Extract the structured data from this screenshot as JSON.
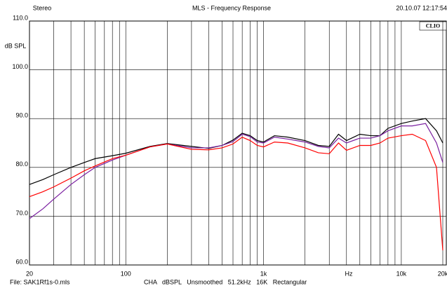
{
  "chart_data": {
    "type": "line",
    "header_left": "Stereo",
    "title": "MLS - Frequency Response",
    "header_right": "20.10.07 12:17:54",
    "logo": "CLIO",
    "ylabel": "dB SPL",
    "xlabel": "Hz",
    "footer_file": "File: SAK1Rf1s-0.mls",
    "footer_settings": "CHA   dBSPL   Unsmoothed   51.2kHz   16K   Rectangular",
    "xscale": "log",
    "xlim": [
      20,
      20000
    ],
    "ylim": [
      60,
      110
    ],
    "yticks": [
      {
        "value": 60,
        "label": "60.0"
      },
      {
        "value": 70,
        "label": "70.0"
      },
      {
        "value": 80,
        "label": "80.0"
      },
      {
        "value": 90,
        "label": "90.0"
      },
      {
        "value": 100,
        "label": "100.0"
      },
      {
        "value": 110,
        "label": "110.0"
      }
    ],
    "xticks": [
      20,
      100,
      {
        "value": 1000,
        "label": "1k"
      },
      {
        "value": 10000,
        "label": "10k"
      },
      {
        "value": 20000,
        "label": "20k"
      }
    ],
    "xminor": [
      30,
      40,
      50,
      60,
      70,
      80,
      90,
      200,
      300,
      400,
      500,
      600,
      700,
      800,
      900,
      2000,
      3000,
      4000,
      5000,
      6000,
      7000,
      8000,
      9000
    ],
    "grid": true,
    "x": [
      20,
      25,
      30,
      40,
      50,
      60,
      80,
      100,
      150,
      200,
      300,
      400,
      500,
      600,
      700,
      800,
      900,
      1000,
      1200,
      1500,
      2000,
      2500,
      3000,
      3500,
      4000,
      5000,
      6000,
      7000,
      8000,
      10000,
      12000,
      15000,
      18000,
      20000
    ],
    "series": [
      {
        "color": "#000000",
        "values": [
          76.5,
          77.5,
          78.5,
          80,
          81,
          81.8,
          82.4,
          82.9,
          84.3,
          84.9,
          84.3,
          83.9,
          84.5,
          85.6,
          87,
          86.5,
          85.5,
          85.2,
          86.5,
          86.2,
          85.5,
          84.5,
          84.3,
          86.8,
          85.5,
          86.8,
          86.5,
          86.5,
          88,
          89,
          89.5,
          90,
          87.5,
          85
        ]
      },
      {
        "color": "#7a1fa0",
        "values": [
          69.5,
          71.5,
          73.5,
          76.5,
          78.5,
          80,
          81.5,
          82.5,
          84.2,
          84.8,
          84,
          84,
          84.5,
          85.3,
          86.8,
          86.3,
          85.2,
          85,
          86.2,
          85.8,
          85.2,
          84.3,
          84,
          86,
          85,
          86,
          86,
          86.5,
          87.5,
          88.5,
          88.5,
          89,
          85,
          81
        ]
      },
      {
        "color": "#ff0000",
        "values": [
          74,
          75,
          76,
          77.8,
          79.3,
          80.3,
          81.8,
          82.5,
          84.2,
          84.8,
          83.7,
          83.6,
          84,
          84.8,
          86.2,
          85.5,
          84.5,
          84.2,
          85.2,
          85,
          84,
          83,
          82.8,
          85,
          83.5,
          84.5,
          84.5,
          85,
          86,
          86.5,
          86.8,
          85.5,
          80,
          63
        ]
      }
    ]
  }
}
